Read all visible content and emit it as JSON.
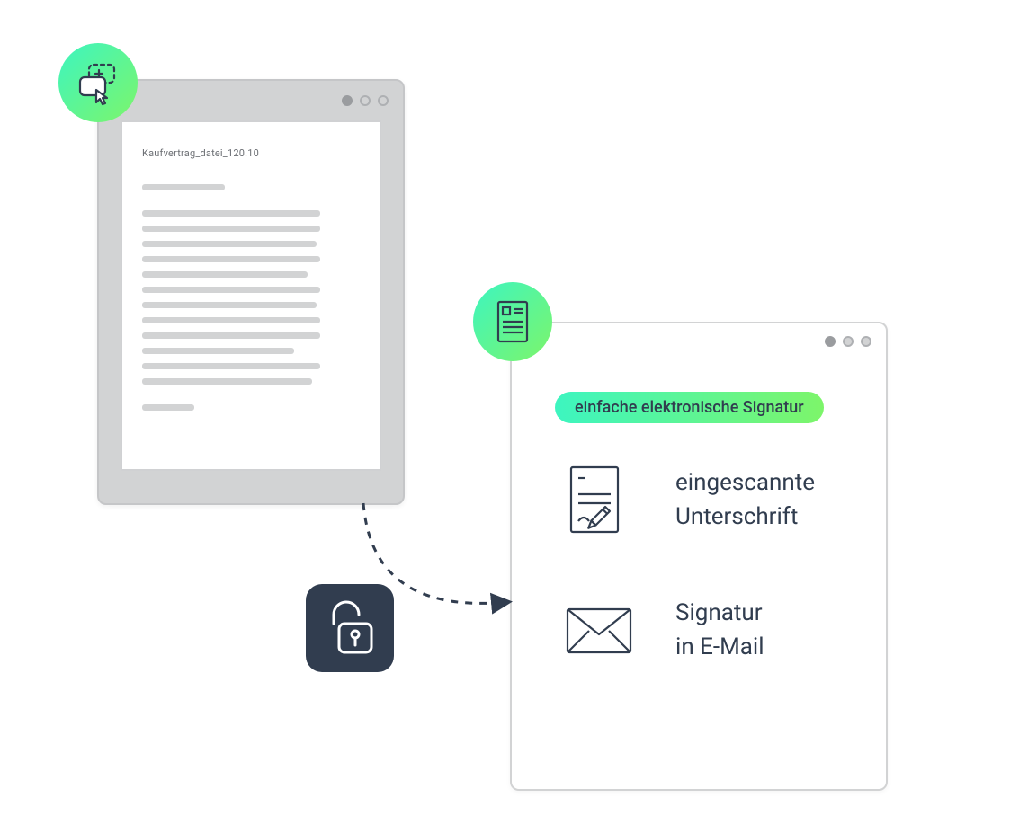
{
  "colors": {
    "gradient_start": "#3df5c0",
    "gradient_end": "#7df56a",
    "panel_grey": "#d2d3d4",
    "panel_border": "#c5c6c8",
    "white": "#ffffff",
    "dark_tile": "#313d4f",
    "text_body": "#313d4f",
    "icon_stroke": "#313d4f",
    "dot_outline": "#aeb0b3",
    "dot_solid": "#9a9c9f"
  },
  "left_window": {
    "doc_title": "Kaufvertrag_datei_120.10",
    "placeholder_lines_widths_pct": [
      38,
      82,
      82,
      80,
      82,
      76,
      82,
      80,
      82,
      82,
      70,
      82,
      78,
      24
    ],
    "placeholder_line_gap_after_indices": [
      0,
      12
    ]
  },
  "right_window": {
    "pill_label": "einfache elektronische Signatur",
    "features": [
      {
        "icon": "signed-doc-icon",
        "text_line1": "eingescannte",
        "text_line2": "Unterschrift"
      },
      {
        "icon": "envelope-icon",
        "text_line1": "Signatur",
        "text_line2": "in E-Mail"
      }
    ]
  },
  "badges": {
    "left": "select-cursor-icon",
    "right": "document-icon"
  },
  "lock_tile": {
    "icon": "unlock-icon"
  },
  "arrow": {
    "dash": "8 8",
    "stroke": "#313d4f",
    "stroke_width": 3
  }
}
